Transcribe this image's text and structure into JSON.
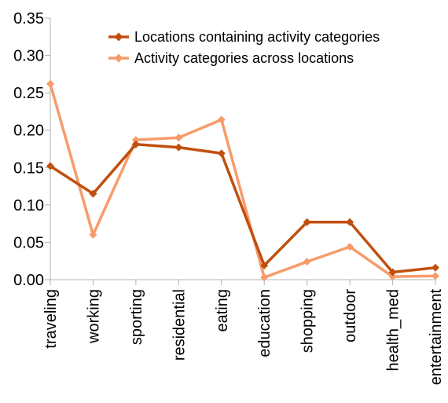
{
  "chart_data": {
    "type": "line",
    "categories": [
      "traveling",
      "working",
      "sporting",
      "residential",
      "eating",
      "education",
      "shopping",
      "outdoor",
      "health_med",
      "entertainment"
    ],
    "series": [
      {
        "name": "Locations containing activity categories",
        "color": "#c0500f",
        "values": [
          0.152,
          0.115,
          0.181,
          0.177,
          0.169,
          0.019,
          0.077,
          0.077,
          0.01,
          0.016
        ]
      },
      {
        "name": "Activity categories across locations",
        "color": "#f79b6b",
        "values": [
          0.262,
          0.06,
          0.187,
          0.19,
          0.214,
          0.003,
          0.024,
          0.044,
          0.004,
          0.005
        ]
      }
    ],
    "yticks": [
      "0.00",
      "0.05",
      "0.10",
      "0.15",
      "0.20",
      "0.25",
      "0.30",
      "0.35"
    ],
    "ylim": [
      0,
      0.35
    ],
    "grid": false,
    "legend_position": "top-right",
    "marker": "diamond"
  }
}
